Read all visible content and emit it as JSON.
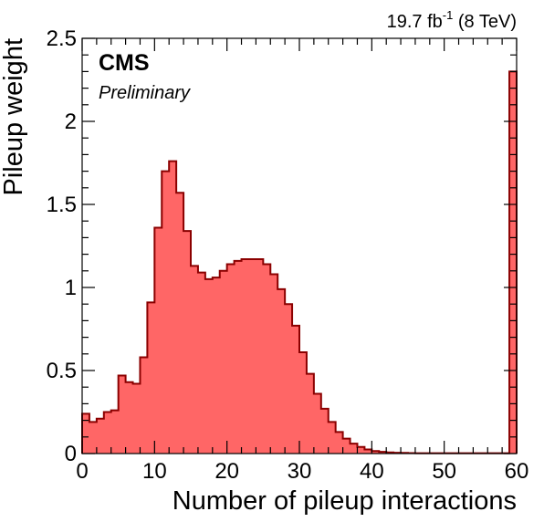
{
  "chart_data": {
    "type": "bar",
    "xlabel": "Number of pileup interactions",
    "ylabel": "Pileup weight",
    "xlim": [
      0,
      60
    ],
    "ylim": [
      0,
      2.5
    ],
    "x_ticks": [
      0,
      10,
      20,
      30,
      40,
      50,
      60
    ],
    "y_ticks": [
      0,
      0.5,
      1,
      1.5,
      2,
      2.5
    ],
    "x_tick_labels": [
      "0",
      "10",
      "20",
      "30",
      "40",
      "50",
      "60"
    ],
    "y_tick_labels": [
      "0",
      "0.5",
      "1",
      "1.5",
      "2",
      "2.5"
    ],
    "bin_width": 1,
    "bins_start": 0,
    "values": [
      0.24,
      0.19,
      0.21,
      0.25,
      0.26,
      0.47,
      0.43,
      0.42,
      0.58,
      0.91,
      1.36,
      1.7,
      1.76,
      1.57,
      1.34,
      1.13,
      1.09,
      1.05,
      1.06,
      1.1,
      1.14,
      1.16,
      1.17,
      1.17,
      1.17,
      1.14,
      1.08,
      0.99,
      0.9,
      0.77,
      0.61,
      0.48,
      0.36,
      0.27,
      0.19,
      0.13,
      0.09,
      0.06,
      0.04,
      0.025,
      0.015,
      0.01,
      0.007,
      0.005,
      0.004,
      0.003,
      0.002,
      0.002,
      0.002,
      0.002,
      0.002,
      0.002,
      0.002,
      0.002,
      0.002,
      0.002,
      0.002,
      0.002,
      0.002,
      2.3
    ],
    "fill_color": "#ff6666",
    "line_color": "#8b0000",
    "grid": false,
    "lumi_label": {
      "value": "19.7 fb",
      "superscript": "-1",
      "suffix": " (8 TeV)"
    },
    "experiment_label": "CMS",
    "status_label": "Preliminary"
  }
}
